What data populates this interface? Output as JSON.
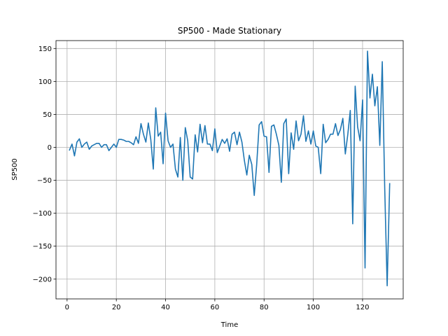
{
  "chart_data": {
    "type": "line",
    "title": "SP500 - Made Stationary",
    "xlabel": "Time",
    "ylabel": "SP500",
    "xlim": [
      -4.5,
      136.5
    ],
    "ylim": [
      -230,
      162
    ],
    "xticks": [
      0,
      20,
      40,
      60,
      80,
      100,
      120
    ],
    "yticks": [
      -200,
      -150,
      -100,
      -50,
      0,
      50,
      100,
      150
    ],
    "grid": true,
    "series": [
      {
        "color": "#1f77b4",
        "x": [
          1,
          2,
          3,
          4,
          5,
          6,
          7,
          8,
          9,
          10,
          11,
          12,
          13,
          14,
          15,
          16,
          17,
          18,
          19,
          20,
          21,
          22,
          23,
          24,
          25,
          26,
          27,
          28,
          29,
          30,
          31,
          32,
          33,
          34,
          35,
          36,
          37,
          38,
          39,
          40,
          41,
          42,
          43,
          44,
          45,
          46,
          47,
          48,
          49,
          50,
          51,
          52,
          53,
          54,
          55,
          56,
          57,
          58,
          59,
          60,
          61,
          62,
          63,
          64,
          65,
          66,
          67,
          68,
          69,
          70,
          71,
          72,
          73,
          74,
          75,
          76,
          77,
          78,
          79,
          80,
          81,
          82,
          83,
          84,
          85,
          86,
          87,
          88,
          89,
          90,
          91,
          92,
          93,
          94,
          95,
          96,
          97,
          98,
          99,
          100,
          101,
          102,
          103,
          104,
          105,
          106,
          107,
          108,
          109,
          110,
          111,
          112,
          113,
          114,
          115,
          116,
          117,
          118,
          119,
          120,
          121,
          122,
          123,
          124,
          125,
          126,
          127,
          128,
          129,
          130,
          131
        ],
        "y": [
          -4,
          5,
          -13,
          8,
          13,
          0,
          5,
          8,
          -3,
          2,
          4,
          6,
          6,
          0,
          4,
          4,
          -5,
          0,
          5,
          0,
          12,
          12,
          11,
          9,
          9,
          7,
          4,
          16,
          6,
          36,
          20,
          8,
          37,
          12,
          -33,
          60,
          17,
          23,
          -25,
          52,
          10,
          0,
          5,
          -33,
          -45,
          15,
          -50,
          30,
          10,
          -45,
          -48,
          19,
          -7,
          35,
          7,
          33,
          5,
          5,
          -5,
          28,
          -8,
          2,
          12,
          6,
          13,
          -6,
          20,
          23,
          4,
          23,
          8,
          -20,
          -42,
          -12,
          -26,
          -73,
          -26,
          34,
          39,
          17,
          16,
          -38,
          32,
          34,
          20,
          3,
          -53,
          36,
          43,
          -40,
          22,
          -3,
          40,
          10,
          20,
          48,
          9,
          25,
          5,
          25,
          2,
          0,
          -40,
          35,
          7,
          12,
          20,
          20,
          36,
          18,
          27,
          44,
          -10,
          20,
          56,
          -116,
          93,
          31,
          10,
          72,
          -183,
          146,
          75,
          111,
          63,
          92,
          3,
          130,
          -62,
          -210,
          -55
        ]
      }
    ]
  }
}
